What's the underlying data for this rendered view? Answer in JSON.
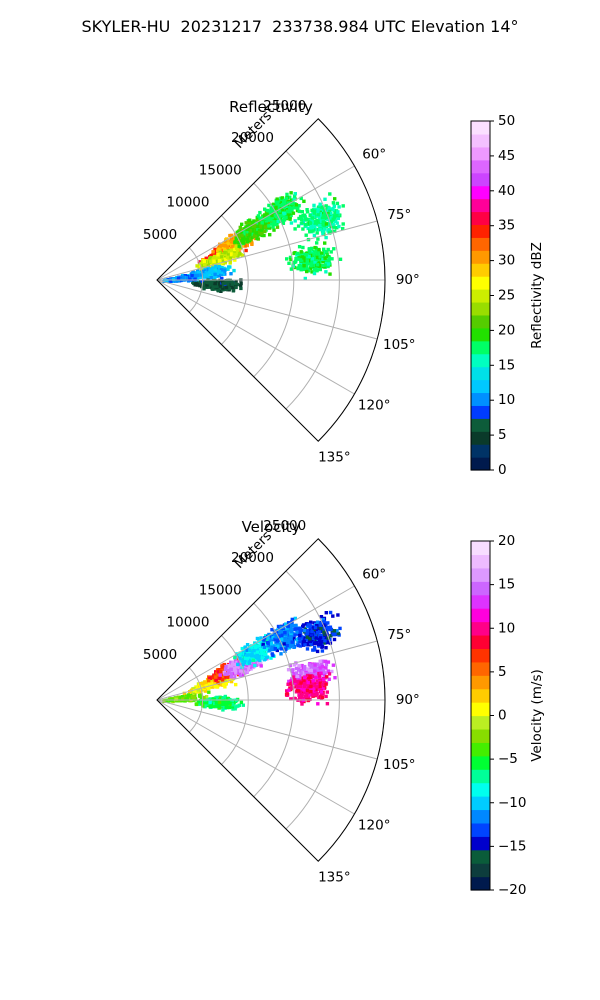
{
  "suptitle": "SKYLER-HU  20231217  233738.984 UTC Elevation 14°",
  "chart_data": [
    {
      "type": "heatmap",
      "projection": "polar-sector",
      "title": "Reflectivity",
      "radial_axis_label": "Meters",
      "radial_ticks": [
        5000,
        10000,
        15000,
        20000,
        25000
      ],
      "radial_tick_labels": [
        "5000",
        "10000",
        "15000",
        "20000",
        "25000"
      ],
      "rlim": [
        0,
        25000
      ],
      "azimuth_ticks": [
        60,
        75,
        90,
        105,
        120,
        135
      ],
      "azimuth_tick_labels": [
        "60°",
        "75°",
        "90°",
        "105°",
        "120°",
        "135°"
      ],
      "azimuth_range_deg": [
        45,
        135
      ],
      "grid": true,
      "colorbar": {
        "label": "Reflectivity dBZ",
        "range": [
          0,
          50
        ],
        "ticks": [
          0,
          5,
          10,
          15,
          20,
          25,
          30,
          35,
          40,
          45,
          50
        ],
        "tick_labels": [
          "0",
          "5",
          "10",
          "15",
          "20",
          "25",
          "30",
          "35",
          "40",
          "45",
          "50"
        ],
        "colors": [
          "#001a4d",
          "#003366",
          "#0a3a2a",
          "#0d5c3a",
          "#003cff",
          "#0090ff",
          "#00c8ff",
          "#00e0e8",
          "#00ffc0",
          "#00ff66",
          "#22e000",
          "#55cc00",
          "#99dd00",
          "#ccee00",
          "#ffff00",
          "#ffcc00",
          "#ff9900",
          "#ff6600",
          "#ff2200",
          "#ff0044",
          "#ff0099",
          "#ff00ff",
          "#cc44ff",
          "#dd66ff",
          "#ee99ff",
          "#f4c0ff",
          "#fbe0ff"
        ]
      },
      "echoes": [
        {
          "range_m": 8000,
          "azimuth_deg": 66,
          "value": 35
        },
        {
          "range_m": 9500,
          "azimuth_deg": 63,
          "value": 30
        },
        {
          "range_m": 7000,
          "azimuth_deg": 70,
          "value": 25
        },
        {
          "range_m": 12000,
          "azimuth_deg": 61,
          "value": 20
        },
        {
          "range_m": 15500,
          "azimuth_deg": 60,
          "value": 18
        },
        {
          "range_m": 19000,
          "azimuth_deg": 69,
          "value": 17
        },
        {
          "range_m": 17000,
          "azimuth_deg": 82,
          "value": 18
        },
        {
          "range_m": 5500,
          "azimuth_deg": 80,
          "value": 12
        },
        {
          "range_m": 6500,
          "azimuth_deg": 93,
          "value": 6
        },
        {
          "range_m": 2000,
          "azimuth_deg": 83,
          "value": 10
        }
      ]
    },
    {
      "type": "heatmap",
      "projection": "polar-sector",
      "title": "Velocity",
      "radial_axis_label": "Meters",
      "radial_ticks": [
        5000,
        10000,
        15000,
        20000,
        25000
      ],
      "radial_tick_labels": [
        "5000",
        "10000",
        "15000",
        "20000",
        "25000"
      ],
      "rlim": [
        0,
        25000
      ],
      "azimuth_ticks": [
        60,
        75,
        90,
        105,
        120,
        135
      ],
      "azimuth_tick_labels": [
        "60°",
        "75°",
        "90°",
        "105°",
        "120°",
        "135°"
      ],
      "azimuth_range_deg": [
        45,
        135
      ],
      "grid": true,
      "colorbar": {
        "label": "Velocity (m/s)",
        "range": [
          -20,
          20
        ],
        "ticks": [
          -20,
          -15,
          -10,
          -5,
          0,
          5,
          10,
          15,
          20
        ],
        "tick_labels": [
          "−20",
          "−15",
          "−10",
          "−5",
          "0",
          "5",
          "10",
          "15",
          "20"
        ],
        "colors": [
          "#001a4d",
          "#0d3d3d",
          "#0a5c3a",
          "#0000cc",
          "#0044ff",
          "#0088ff",
          "#00ccff",
          "#00ffee",
          "#00ff99",
          "#00ff33",
          "#44ee00",
          "#88dd00",
          "#bbee22",
          "#ffff00",
          "#ffcc00",
          "#ff9900",
          "#ff6600",
          "#ff3300",
          "#ff0033",
          "#ff0088",
          "#ff00dd",
          "#dd33ff",
          "#cc66ff",
          "#dd99ff",
          "#eebbff",
          "#f8ddff"
        ]
      },
      "echoes": [
        {
          "range_m": 6000,
          "azimuth_deg": 72,
          "value": 1
        },
        {
          "range_m": 8500,
          "azimuth_deg": 66,
          "value": 7
        },
        {
          "range_m": 10000,
          "azimuth_deg": 67,
          "value": 15
        },
        {
          "range_m": 12000,
          "azimuth_deg": 63,
          "value": -9
        },
        {
          "range_m": 15500,
          "azimuth_deg": 63,
          "value": -12
        },
        {
          "range_m": 19000,
          "azimuth_deg": 67,
          "value": -14
        },
        {
          "range_m": 17000,
          "azimuth_deg": 80,
          "value": 14
        },
        {
          "range_m": 16500,
          "azimuth_deg": 85,
          "value": 10
        },
        {
          "range_m": 6500,
          "azimuth_deg": 91,
          "value": -6
        },
        {
          "range_m": 2500,
          "azimuth_deg": 83,
          "value": -3
        }
      ]
    }
  ]
}
